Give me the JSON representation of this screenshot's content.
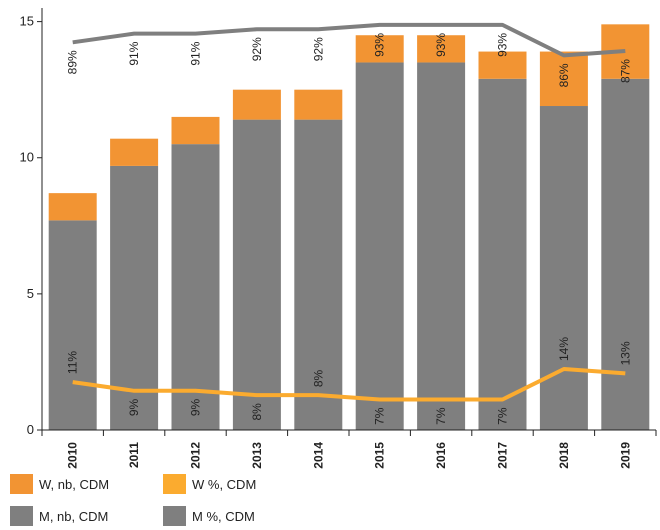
{
  "chart_data": {
    "type": "bar",
    "categories": [
      "2010",
      "2011",
      "2012",
      "2013",
      "2014",
      "2015",
      "2016",
      "2017",
      "2018",
      "2019"
    ],
    "ylim": [
      0,
      15.5
    ],
    "yticks": [
      "0",
      "5",
      "10",
      "15"
    ],
    "grid": false,
    "legend_position": "bottom",
    "series": [
      {
        "name": "M, nb, CDM",
        "kind": "bar",
        "color": "#7f7f7f",
        "values": [
          7.7,
          9.7,
          10.5,
          11.4,
          11.4,
          13.5,
          13.5,
          12.9,
          11.9,
          12.9
        ]
      },
      {
        "name": "W, nb, CDM",
        "kind": "bar",
        "color": "#f29433",
        "values": [
          1.0,
          1.0,
          1.0,
          1.1,
          1.1,
          1.0,
          1.0,
          1.0,
          2.0,
          2.0
        ]
      },
      {
        "name": "M %, CDM",
        "kind": "line",
        "color": "#7f7f7f",
        "values": [
          89,
          91,
          91,
          92,
          92,
          93,
          93,
          93,
          86,
          87
        ],
        "labels": [
          "89%",
          "91%",
          "91%",
          "92%",
          "92%",
          "93%",
          "93%",
          "93%",
          "86%",
          "87%"
        ]
      },
      {
        "name": "W %, CDM",
        "kind": "line",
        "color": "#fbab2f",
        "values": [
          11,
          9,
          9,
          8,
          8,
          7,
          7,
          7,
          14,
          13
        ],
        "labels": [
          "11%",
          "9%",
          "9%",
          "8%",
          "8%",
          "7%",
          "7%",
          "7%",
          "14%",
          "13%"
        ]
      }
    ],
    "legend": [
      {
        "label": "W, nb, CDM",
        "color": "#f29433"
      },
      {
        "label": "W %, CDM",
        "color": "#fbab2f"
      },
      {
        "label": "M, nb, CDM",
        "color": "#7f7f7f"
      },
      {
        "label": "M %, CDM",
        "color": "#7f7f7f"
      }
    ]
  }
}
